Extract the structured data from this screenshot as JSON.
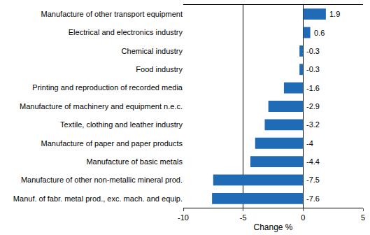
{
  "chart_data": {
    "type": "bar",
    "orientation": "horizontal",
    "categories": [
      "Manufacture of other transport equipment",
      "Electrical and electronics industry",
      "Chemical industry",
      "Food industry",
      "Printing and reproduction of recorded media",
      "Manufacture of machinery and equipment n.e.c.",
      "Textile, clothing and leather industry",
      "Manufacture of paper and paper products",
      "Manufacture of basic metals",
      "Manufacture of other non-metallic mineral prod.",
      "Manuf. of fabr. metal prod., exc. mach. and equip."
    ],
    "values": [
      1.9,
      0.6,
      -0.3,
      -0.3,
      -1.6,
      -2.9,
      -3.2,
      -4,
      -4.4,
      -7.5,
      -7.6
    ],
    "color": "#1f6bb5",
    "x_label": "Change %",
    "xlim": [
      -10,
      5
    ],
    "xticks": [
      -10,
      -5,
      0,
      5
    ],
    "grid": true,
    "data_labels": true
  }
}
